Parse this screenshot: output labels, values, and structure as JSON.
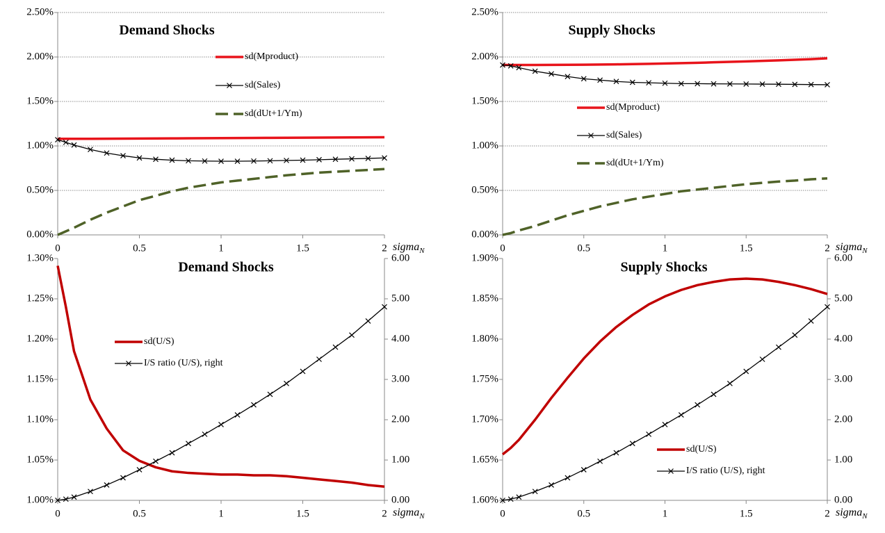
{
  "chart_data": [
    {
      "type": "line",
      "title": "Demand Shocks",
      "legend": "upper center",
      "xlabel": "sigma",
      "xlabel_subscript": "N",
      "x": [
        0,
        0.05,
        0.1,
        0.2,
        0.3,
        0.4,
        0.5,
        0.6,
        0.7,
        0.8,
        0.9,
        1,
        1.1,
        1.2,
        1.3,
        1.4,
        1.5,
        1.6,
        1.7,
        1.8,
        1.9,
        2
      ],
      "xlim": [
        0,
        2
      ],
      "xticks": [
        0,
        0.5,
        1,
        1.5,
        2
      ],
      "ylim": [
        0,
        2.5
      ],
      "yticks": [
        {
          "value": 0,
          "label": "0.00%"
        },
        {
          "value": 0.5,
          "label": "0.50%"
        },
        {
          "value": 1,
          "label": "1.00%"
        },
        {
          "value": 1.5,
          "label": "1.50%"
        },
        {
          "value": 2,
          "label": "2.00%"
        },
        {
          "value": 2.5,
          "label": "2.50%"
        }
      ],
      "grid": true,
      "series": [
        {
          "name": "sd(Mproduct)",
          "color": "#e8141b",
          "line_style": "solid",
          "values": [
            1.08,
            1.08,
            1.08,
            1.08,
            1.081,
            1.082,
            1.083,
            1.084,
            1.085,
            1.086,
            1.087,
            1.088,
            1.089,
            1.09,
            1.091,
            1.092,
            1.093,
            1.094,
            1.095,
            1.096,
            1.097,
            1.098
          ]
        },
        {
          "name": "sd(Sales)",
          "color": "#000000",
          "line_style": "solid",
          "marker": "x",
          "values": [
            1.07,
            1.04,
            1.01,
            0.96,
            0.92,
            0.89,
            0.865,
            0.85,
            0.84,
            0.833,
            0.83,
            0.828,
            0.828,
            0.83,
            0.833,
            0.837,
            0.84,
            0.845,
            0.85,
            0.855,
            0.86,
            0.865
          ]
        },
        {
          "name": "sd(dUt+1/Ym)",
          "color": "#4f6228",
          "line_style": "dashed",
          "values": [
            0,
            0.04,
            0.08,
            0.17,
            0.25,
            0.32,
            0.39,
            0.44,
            0.49,
            0.53,
            0.56,
            0.59,
            0.61,
            0.63,
            0.65,
            0.67,
            0.685,
            0.7,
            0.71,
            0.72,
            0.73,
            0.74
          ]
        }
      ]
    },
    {
      "type": "line",
      "title": "Supply Shocks",
      "legend": "center left",
      "xlabel": "sigma",
      "xlabel_subscript": "N",
      "x": [
        0,
        0.05,
        0.1,
        0.2,
        0.3,
        0.4,
        0.5,
        0.6,
        0.7,
        0.8,
        0.9,
        1,
        1.1,
        1.2,
        1.3,
        1.4,
        1.5,
        1.6,
        1.7,
        1.8,
        1.9,
        2
      ],
      "xlim": [
        0,
        2
      ],
      "xticks": [
        0,
        0.5,
        1,
        1.5,
        2
      ],
      "ylim": [
        0,
        2.5
      ],
      "yticks": [
        {
          "value": 0,
          "label": "0.00%"
        },
        {
          "value": 0.5,
          "label": "0.50%"
        },
        {
          "value": 1,
          "label": "1.00%"
        },
        {
          "value": 1.5,
          "label": "1.50%"
        },
        {
          "value": 2,
          "label": "2.00%"
        },
        {
          "value": 2.5,
          "label": "2.50%"
        }
      ],
      "grid": true,
      "series": [
        {
          "name": "sd(Mproduct)",
          "color": "#e8141b",
          "line_style": "solid",
          "values": [
            1.91,
            1.91,
            1.91,
            1.91,
            1.911,
            1.912,
            1.913,
            1.915,
            1.917,
            1.92,
            1.923,
            1.927,
            1.931,
            1.935,
            1.94,
            1.945,
            1.95,
            1.956,
            1.962,
            1.969,
            1.976,
            1.985
          ]
        },
        {
          "name": "sd(Sales)",
          "color": "#000000",
          "line_style": "solid",
          "marker": "x",
          "values": [
            1.91,
            1.9,
            1.88,
            1.84,
            1.81,
            1.78,
            1.755,
            1.74,
            1.725,
            1.715,
            1.71,
            1.705,
            1.7,
            1.7,
            1.698,
            1.697,
            1.696,
            1.695,
            1.694,
            1.692,
            1.69,
            1.688
          ]
        },
        {
          "name": "sd(dUt+1/Ym)",
          "color": "#4f6228",
          "line_style": "dashed",
          "values": [
            0,
            0.02,
            0.05,
            0.1,
            0.16,
            0.22,
            0.27,
            0.32,
            0.36,
            0.4,
            0.43,
            0.46,
            0.49,
            0.51,
            0.53,
            0.55,
            0.57,
            0.585,
            0.6,
            0.61,
            0.625,
            0.635
          ]
        }
      ]
    },
    {
      "type": "line",
      "title": "Demand Shocks",
      "legend": "upper left",
      "xlabel": "sigma",
      "xlabel_subscript": "N",
      "x": [
        0,
        0.05,
        0.1,
        0.2,
        0.3,
        0.4,
        0.5,
        0.6,
        0.7,
        0.8,
        0.9,
        1,
        1.1,
        1.2,
        1.3,
        1.4,
        1.5,
        1.6,
        1.7,
        1.8,
        1.9,
        2
      ],
      "xlim": [
        0,
        2
      ],
      "xticks": [
        0,
        0.5,
        1,
        1.5,
        2
      ],
      "ylim": [
        1,
        1.3
      ],
      "yticks": [
        {
          "value": 1,
          "label": "1.00%"
        },
        {
          "value": 1.05,
          "label": "1.05%"
        },
        {
          "value": 1.1,
          "label": "1.10%"
        },
        {
          "value": 1.15,
          "label": "1.15%"
        },
        {
          "value": 1.2,
          "label": "1.20%"
        },
        {
          "value": 1.25,
          "label": "1.25%"
        },
        {
          "value": 1.3,
          "label": "1.30%"
        }
      ],
      "y2lim": [
        0,
        6
      ],
      "y2ticks": [
        {
          "value": 0,
          "label": "0.00"
        },
        {
          "value": 1,
          "label": "1.00"
        },
        {
          "value": 2,
          "label": "2.00"
        },
        {
          "value": 3,
          "label": "3.00"
        },
        {
          "value": 4,
          "label": "4.00"
        },
        {
          "value": 5,
          "label": "5.00"
        },
        {
          "value": 6,
          "label": "6.00"
        }
      ],
      "grid": false,
      "series": [
        {
          "name": "sd(U/S)",
          "color": "#c00000",
          "line_style": "solid",
          "values": [
            1.291,
            1.24,
            1.185,
            1.125,
            1.089,
            1.062,
            1.049,
            1.041,
            1.036,
            1.034,
            1.033,
            1.032,
            1.032,
            1.031,
            1.031,
            1.03,
            1.028,
            1.026,
            1.024,
            1.022,
            1.019,
            1.017
          ]
        },
        {
          "name": "I/S ratio (U/S), right",
          "color": "#000000",
          "line_style": "thin",
          "marker": "x",
          "axis": "y2",
          "values": [
            0,
            0.03,
            0.08,
            0.22,
            0.38,
            0.56,
            0.76,
            0.97,
            1.18,
            1.41,
            1.64,
            1.88,
            2.12,
            2.37,
            2.63,
            2.9,
            3.2,
            3.5,
            3.8,
            4.1,
            4.45,
            4.8
          ]
        }
      ]
    },
    {
      "type": "line",
      "title": "Supply Shocks",
      "legend": "lower right",
      "xlabel": "sigma",
      "xlabel_subscript": "N",
      "x": [
        0,
        0.05,
        0.1,
        0.2,
        0.3,
        0.4,
        0.5,
        0.6,
        0.7,
        0.8,
        0.9,
        1,
        1.1,
        1.2,
        1.3,
        1.4,
        1.5,
        1.6,
        1.7,
        1.8,
        1.9,
        2
      ],
      "xlim": [
        0,
        2
      ],
      "xticks": [
        0,
        0.5,
        1,
        1.5,
        2
      ],
      "ylim": [
        1.6,
        1.9
      ],
      "yticks": [
        {
          "value": 1.6,
          "label": "1.60%"
        },
        {
          "value": 1.65,
          "label": "1.65%"
        },
        {
          "value": 1.7,
          "label": "1.70%"
        },
        {
          "value": 1.75,
          "label": "1.75%"
        },
        {
          "value": 1.8,
          "label": "1.80%"
        },
        {
          "value": 1.85,
          "label": "1.85%"
        },
        {
          "value": 1.9,
          "label": "1.90%"
        }
      ],
      "y2lim": [
        0,
        6
      ],
      "y2ticks": [
        {
          "value": 0,
          "label": "0.00"
        },
        {
          "value": 1,
          "label": "1.00"
        },
        {
          "value": 2,
          "label": "2.00"
        },
        {
          "value": 3,
          "label": "3.00"
        },
        {
          "value": 4,
          "label": "4.00"
        },
        {
          "value": 5,
          "label": "5.00"
        },
        {
          "value": 6,
          "label": "6.00"
        }
      ],
      "grid": false,
      "series": [
        {
          "name": "sd(U/S)",
          "color": "#c00000",
          "line_style": "solid",
          "values": [
            1.657,
            1.665,
            1.675,
            1.7,
            1.727,
            1.752,
            1.776,
            1.797,
            1.815,
            1.83,
            1.843,
            1.853,
            1.861,
            1.867,
            1.871,
            1.874,
            1.875,
            1.874,
            1.871,
            1.867,
            1.862,
            1.856
          ]
        },
        {
          "name": "I/S ratio (U/S), right",
          "color": "#000000",
          "line_style": "thin",
          "marker": "x",
          "axis": "y2",
          "values": [
            0,
            0.03,
            0.08,
            0.22,
            0.38,
            0.56,
            0.76,
            0.97,
            1.18,
            1.41,
            1.64,
            1.88,
            2.12,
            2.37,
            2.63,
            2.9,
            3.2,
            3.5,
            3.8,
            4.1,
            4.45,
            4.8
          ]
        }
      ]
    }
  ]
}
